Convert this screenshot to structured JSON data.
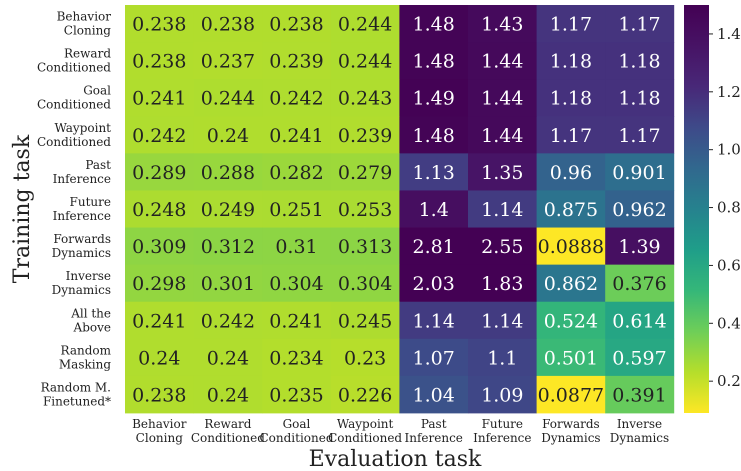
{
  "chart_data": {
    "type": "heatmap",
    "xlabel": "Evaluation task",
    "ylabel": "Training task",
    "columns": [
      [
        "Behavior",
        "Cloning"
      ],
      [
        "Reward",
        "Conditioned"
      ],
      [
        "Goal",
        "Conditioned"
      ],
      [
        "Waypoint",
        "Conditioned"
      ],
      [
        "Past",
        "Inference"
      ],
      [
        "Future",
        "Inference"
      ],
      [
        "Forwards",
        "Dynamics"
      ],
      [
        "Inverse",
        "Dynamics"
      ]
    ],
    "rows": [
      [
        "Behavior",
        "Cloning"
      ],
      [
        "Reward",
        "Conditioned"
      ],
      [
        "Goal",
        "Conditioned"
      ],
      [
        "Waypoint",
        "Conditioned"
      ],
      [
        "Past",
        "Inference"
      ],
      [
        "Future",
        "Inference"
      ],
      [
        "Forwards",
        "Dynamics"
      ],
      [
        "Inverse",
        "Dynamics"
      ],
      [
        "All the",
        "Above"
      ],
      [
        "Random",
        "Masking"
      ],
      [
        "Random M.",
        "Finetuned*"
      ]
    ],
    "values": [
      [
        "0.238",
        "0.238",
        "0.238",
        "0.244",
        "1.48",
        "1.43",
        "1.17",
        "1.17"
      ],
      [
        "0.238",
        "0.237",
        "0.239",
        "0.244",
        "1.48",
        "1.44",
        "1.18",
        "1.18"
      ],
      [
        "0.241",
        "0.244",
        "0.242",
        "0.243",
        "1.49",
        "1.44",
        "1.18",
        "1.18"
      ],
      [
        "0.242",
        "0.24",
        "0.241",
        "0.239",
        "1.48",
        "1.44",
        "1.17",
        "1.17"
      ],
      [
        "0.289",
        "0.288",
        "0.282",
        "0.279",
        "1.13",
        "1.35",
        "0.96",
        "0.901"
      ],
      [
        "0.248",
        "0.249",
        "0.251",
        "0.253",
        "1.4",
        "1.14",
        "0.875",
        "0.962"
      ],
      [
        "0.309",
        "0.312",
        "0.31",
        "0.313",
        "2.81",
        "2.55",
        "0.0888",
        "1.39"
      ],
      [
        "0.298",
        "0.301",
        "0.304",
        "0.304",
        "2.03",
        "1.83",
        "0.862",
        "0.376"
      ],
      [
        "0.241",
        "0.242",
        "0.241",
        "0.245",
        "1.14",
        "1.14",
        "0.524",
        "0.614"
      ],
      [
        "0.24",
        "0.24",
        "0.234",
        "0.23",
        "1.07",
        "1.1",
        "0.501",
        "0.597"
      ],
      [
        "0.238",
        "0.24",
        "0.235",
        "0.226",
        "1.04",
        "1.09",
        "0.0877",
        "0.391"
      ]
    ],
    "colormap": "viridis_r",
    "color_range": [
      0.09,
      1.5
    ],
    "colorbar_ticks": [
      "0.2",
      "0.4",
      "0.6",
      "0.8",
      "1.0",
      "1.2",
      "1.4"
    ],
    "colorbar_tick_values": [
      0.2,
      0.4,
      0.6,
      0.8,
      1.0,
      1.2,
      1.4
    ],
    "grid": false
  }
}
